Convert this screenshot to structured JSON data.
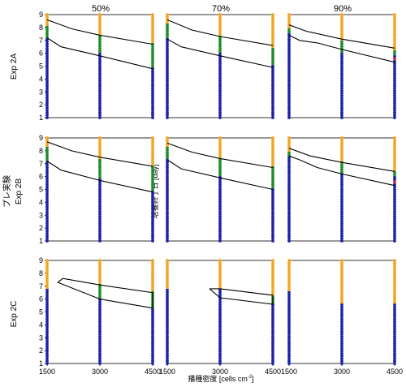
{
  "col_titles": [
    "50%",
    "70%",
    "90%"
  ],
  "row_labels": [
    "Exp 2A",
    "Exp 2B",
    "Exp 2C"
  ],
  "side_label": "プレ実験",
  "ylabel": "培養終了日 [day]",
  "xlabel_main": "播種密度 [cells cm",
  "xlabel_sup": "-2",
  "xlabel_end": "]",
  "colors": {
    "blue": "#1c23a6",
    "orange": "#f3a521",
    "green": "#1f8c2b",
    "red": "#d8232a",
    "line": "#000000"
  },
  "chart_data": {
    "type": "scatter",
    "x_ticks": [
      1500,
      3000,
      4500
    ],
    "y_ticks": [
      1,
      2,
      3,
      4,
      5,
      6,
      7,
      8,
      9
    ],
    "xlim": [
      1500,
      4500
    ],
    "ylim": [
      1,
      9
    ],
    "panels": [
      {
        "row": "Exp 2A",
        "col": "50%",
        "columns": [
          {
            "x": 1500,
            "orange_above": 8.1,
            "green": [
              7.1,
              8.1
            ]
          },
          {
            "x": 3000,
            "orange_above": 7.4,
            "green": [
              6.0,
              7.4
            ]
          },
          {
            "x": 4500,
            "orange_above": 6.8,
            "green": [
              5.0,
              6.8
            ]
          }
        ],
        "curves": [
          [
            [
              1500,
              8.6
            ],
            [
              2200,
              7.9
            ],
            [
              3000,
              7.4
            ],
            [
              4500,
              6.7
            ]
          ],
          [
            [
              1500,
              7.2
            ],
            [
              1900,
              6.5
            ],
            [
              3000,
              5.8
            ],
            [
              4500,
              4.8
            ]
          ]
        ]
      },
      {
        "row": "Exp 2A",
        "col": "70%",
        "columns": [
          {
            "x": 1500,
            "orange_above": 8.3,
            "green": [
              7.2,
              8.3
            ]
          },
          {
            "x": 3000,
            "orange_above": 7.3,
            "green": [
              6.0,
              7.3
            ]
          },
          {
            "x": 4500,
            "orange_above": 6.4,
            "green": [
              5.1,
              6.4
            ]
          }
        ],
        "curves": [
          [
            [
              1500,
              8.6
            ],
            [
              2200,
              7.8
            ],
            [
              3000,
              7.3
            ],
            [
              4500,
              6.6
            ]
          ],
          [
            [
              1500,
              7.1
            ],
            [
              1900,
              6.5
            ],
            [
              3000,
              5.8
            ],
            [
              4500,
              4.9
            ]
          ]
        ]
      },
      {
        "row": "Exp 2A",
        "col": "90%",
        "columns": [
          {
            "x": 1500,
            "orange_above": 8.0,
            "green": [
              7.5,
              8.0
            ]
          },
          {
            "x": 3000,
            "orange_above": 7.0,
            "green": [
              6.1,
              7.0
            ]
          },
          {
            "x": 4500,
            "orange_above": 6.3,
            "green": [
              5.8,
              6.3
            ],
            "red": [
              5.5
            ]
          }
        ],
        "curves": [
          [
            [
              1500,
              8.2
            ],
            [
              2000,
              7.7
            ],
            [
              3000,
              7.1
            ],
            [
              4500,
              6.4
            ]
          ],
          [
            [
              1500,
              7.4
            ],
            [
              1800,
              7.0
            ],
            [
              2300,
              6.8
            ],
            [
              3000,
              6.3
            ],
            [
              4500,
              5.3
            ]
          ]
        ]
      },
      {
        "row": "Exp 2B",
        "col": "50%",
        "columns": [
          {
            "x": 1500,
            "orange_above": 8.4,
            "green": [
              7.2,
              8.4
            ]
          },
          {
            "x": 3000,
            "orange_above": 7.4,
            "green": [
              5.8,
              7.4
            ]
          },
          {
            "x": 4500,
            "orange_above": 6.8,
            "green": [
              5.0,
              6.8
            ]
          }
        ],
        "curves": [
          [
            [
              1500,
              8.7
            ],
            [
              2200,
              8.0
            ],
            [
              3000,
              7.5
            ],
            [
              4500,
              6.8
            ]
          ],
          [
            [
              1500,
              7.2
            ],
            [
              1900,
              6.5
            ],
            [
              3000,
              5.7
            ],
            [
              4500,
              4.8
            ]
          ]
        ]
      },
      {
        "row": "Exp 2B",
        "col": "70%",
        "columns": [
          {
            "x": 1500,
            "orange_above": 8.4,
            "green": [
              7.3,
              8.4
            ]
          },
          {
            "x": 3000,
            "orange_above": 7.4,
            "green": [
              6.0,
              7.4
            ]
          },
          {
            "x": 4500,
            "orange_above": 6.8,
            "green": [
              5.1,
              6.8
            ]
          }
        ],
        "curves": [
          [
            [
              1500,
              8.6
            ],
            [
              2200,
              7.9
            ],
            [
              3000,
              7.4
            ],
            [
              4500,
              6.7
            ]
          ],
          [
            [
              1500,
              7.3
            ],
            [
              1900,
              6.6
            ],
            [
              3000,
              5.9
            ],
            [
              4500,
              5.0
            ]
          ]
        ]
      },
      {
        "row": "Exp 2B",
        "col": "90%",
        "columns": [
          {
            "x": 1500,
            "orange_above": 8.0,
            "green": [
              7.6,
              8.0
            ]
          },
          {
            "x": 3000,
            "orange_above": 7.2,
            "green": [
              6.3,
              7.2
            ]
          },
          {
            "x": 4500,
            "orange_above": 6.5,
            "green": [
              6.1,
              6.5
            ],
            "red": [
              5.6
            ]
          }
        ],
        "curves": [
          [
            [
              1500,
              8.2
            ],
            [
              2100,
              7.6
            ],
            [
              3000,
              7.1
            ],
            [
              4500,
              6.4
            ]
          ],
          [
            [
              1500,
              7.6
            ],
            [
              1800,
              7.3
            ],
            [
              2300,
              6.7
            ],
            [
              3000,
              6.2
            ],
            [
              4500,
              5.3
            ]
          ]
        ]
      },
      {
        "row": "Exp 2C",
        "col": "50%",
        "columns": [
          {
            "x": 1500,
            "orange_above": 6.8,
            "green": []
          },
          {
            "x": 3000,
            "orange_above": 7.2,
            "green": [
              6.0,
              7.2
            ]
          },
          {
            "x": 4500,
            "orange_above": 6.6,
            "green": [
              5.3,
              6.6
            ]
          }
        ],
        "curves": [
          [
            [
              1800,
              7.3
            ],
            [
              1950,
              7.6
            ],
            [
              3000,
              7.1
            ],
            [
              4500,
              6.5
            ],
            [
              4500,
              5.3
            ],
            [
              3000,
              6.0
            ],
            [
              1800,
              7.3
            ]
          ]
        ]
      },
      {
        "row": "Exp 2C",
        "col": "70%",
        "columns": [
          {
            "x": 1500,
            "orange_above": 6.8,
            "green": []
          },
          {
            "x": 3000,
            "orange_above": 6.8,
            "green": [
              6.8,
              6.8
            ]
          },
          {
            "x": 4500,
            "orange_above": 6.3,
            "green": [
              5.7,
              6.3
            ]
          }
        ],
        "curves": [
          [
            [
              2700,
              6.8
            ],
            [
              3000,
              6.8
            ],
            [
              4500,
              6.3
            ],
            [
              4500,
              5.6
            ],
            [
              3000,
              6.1
            ],
            [
              2700,
              6.8
            ]
          ]
        ]
      },
      {
        "row": "Exp 2C",
        "col": "90%",
        "columns": [
          {
            "x": 1500,
            "orange_above": 6.6,
            "green": []
          },
          {
            "x": 3000,
            "orange_above": 5.6,
            "green": []
          },
          {
            "x": 4500,
            "orange_above": 5.6,
            "green": []
          }
        ],
        "curves": []
      }
    ]
  }
}
